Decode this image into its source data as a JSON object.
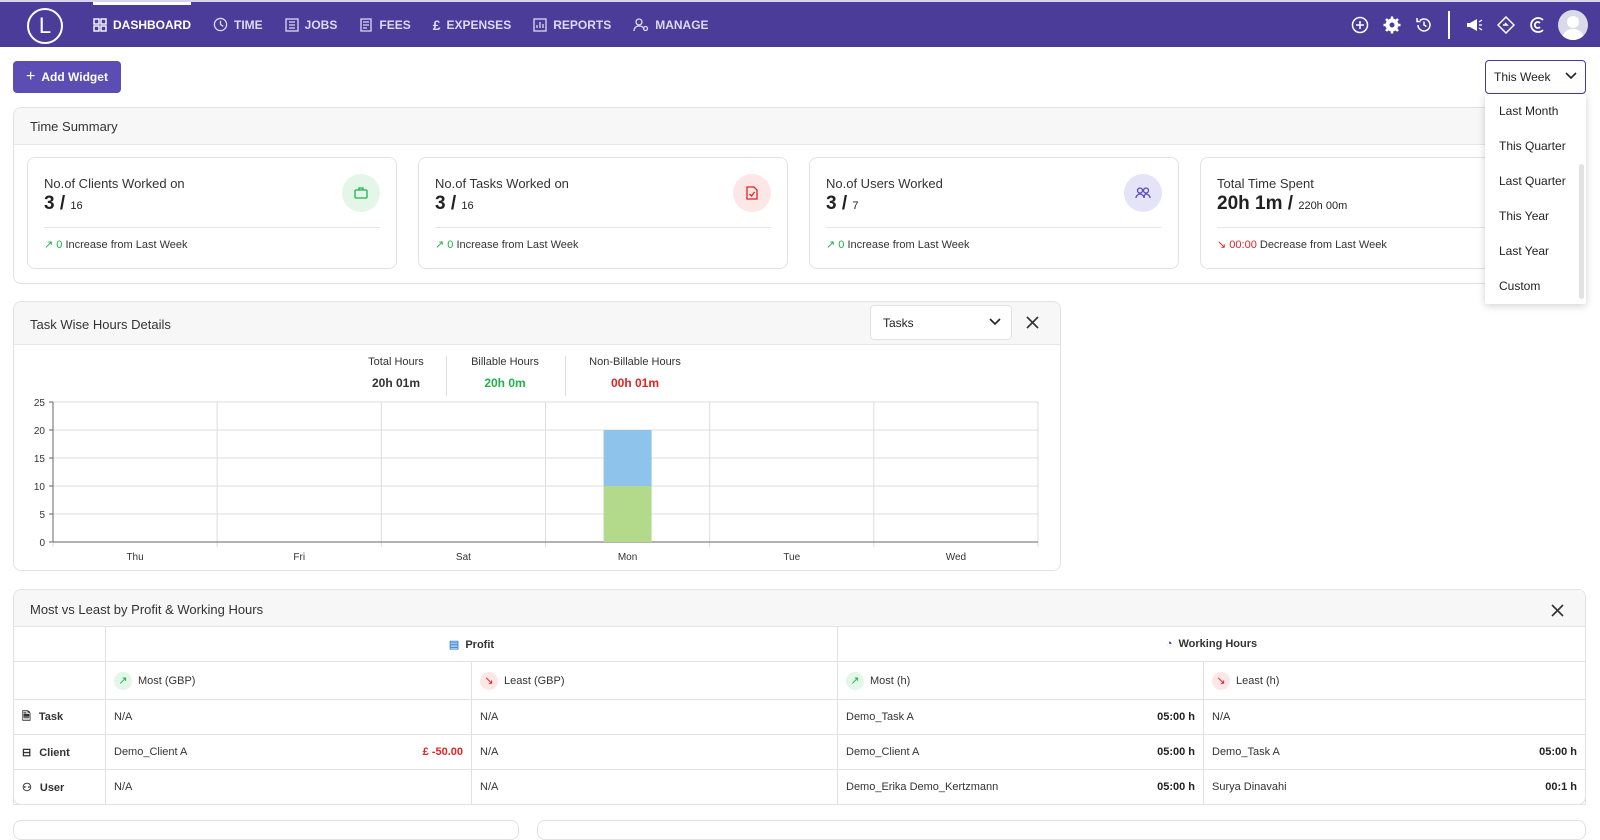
{
  "app": {
    "logo_letter": "L"
  },
  "nav": {
    "items": [
      {
        "label": "DASHBOARD",
        "icon": "grid-icon",
        "active": true
      },
      {
        "label": "TIME",
        "icon": "clock-icon"
      },
      {
        "label": "JOBS",
        "icon": "list-icon"
      },
      {
        "label": "FEES",
        "icon": "receipt-icon"
      },
      {
        "label": "EXPENSES",
        "icon": "pound-icon"
      },
      {
        "label": "REPORTS",
        "icon": "bar-chart-icon"
      },
      {
        "label": "MANAGE",
        "icon": "users-gear-icon"
      }
    ]
  },
  "toolbar": {
    "add_widget": "Add Widget",
    "range_selected": "This Week"
  },
  "range_options": [
    "Last Month",
    "This Quarter",
    "Last Quarter",
    "This Year",
    "Last Year",
    "Custom"
  ],
  "time_summary": {
    "title": "Time Summary",
    "cards": [
      {
        "title": "No.of Clients Worked on",
        "value": "3 /",
        "total": "16",
        "trend_value": "0",
        "trend_text": "Increase from Last Week",
        "trend": "up",
        "icon": "briefcase-icon",
        "color": "#22b04b"
      },
      {
        "title": "No.of Tasks Worked on",
        "value": "3 /",
        "total": "16",
        "trend_value": "0",
        "trend_text": "Increase from Last Week",
        "trend": "up",
        "icon": "task-file-icon",
        "color": "#e02424"
      },
      {
        "title": "No.of Users Worked",
        "value": "3 /",
        "total": "7",
        "trend_value": "0",
        "trend_text": "Increase from Last Week",
        "trend": "up",
        "icon": "users-icon",
        "color": "#5b4db3"
      },
      {
        "title": "Total Time Spent",
        "value": "20h 1m /",
        "total": "220h 00m",
        "trend_value": "00:00",
        "trend_text": "Decrease from Last Week",
        "trend": "down",
        "icon": "clock-icon",
        "color": "#e89a1c"
      }
    ]
  },
  "task_hours": {
    "title": "Task Wise Hours Details",
    "selector": "Tasks",
    "total_label": "Total Hours",
    "total_value": "20h 01m",
    "billable_label": "Billable Hours",
    "billable_value": "20h 0m",
    "nonbillable_label": "Non-Billable Hours",
    "nonbillable_value": "00h 01m"
  },
  "chart_data": {
    "type": "bar",
    "categories": [
      "Thu",
      "Fri",
      "Sat",
      "Mon",
      "Tue",
      "Wed"
    ],
    "series": [
      {
        "values": [
          0,
          0,
          0,
          10,
          0,
          0
        ],
        "color": "#b3d98a"
      },
      {
        "values": [
          0,
          0,
          0,
          10,
          0,
          0
        ],
        "color": "#8ec3eb"
      }
    ],
    "stacked": true,
    "ylim": [
      0,
      25
    ],
    "yticks": [
      0,
      5,
      10,
      15,
      20,
      25
    ],
    "grid": true,
    "xlabel": "",
    "ylabel": ""
  },
  "most_least": {
    "title": "Most vs Least by Profit & Working Hours",
    "profit_label": "Profit",
    "hours_label": "Working Hours",
    "sub": [
      "Most (GBP)",
      "Least (GBP)",
      "Most (h)",
      "Least (h)"
    ],
    "rows": [
      {
        "label": "Task",
        "icon": "task-icon",
        "c1": "N/A",
        "c1v": "",
        "c2": "N/A",
        "c3": "Demo_Task A",
        "c3v": "05:00 h",
        "c4": "N/A",
        "c4v": ""
      },
      {
        "label": "Client",
        "icon": "briefcase-icon",
        "c1": "Demo_Client A",
        "c1v": "£ -50.00",
        "c2": "N/A",
        "c3": "Demo_Client A",
        "c3v": "05:00 h",
        "c4": "Demo_Task A",
        "c4v": "05:00 h"
      },
      {
        "label": "User",
        "icon": "users-icon",
        "c1": "N/A",
        "c1v": "",
        "c2": "N/A",
        "c3": "Demo_Erika Demo_Kertzmann",
        "c3v": "05:00 h",
        "c4": "Surya Dinavahi",
        "c4v": "00:1 h"
      }
    ]
  }
}
